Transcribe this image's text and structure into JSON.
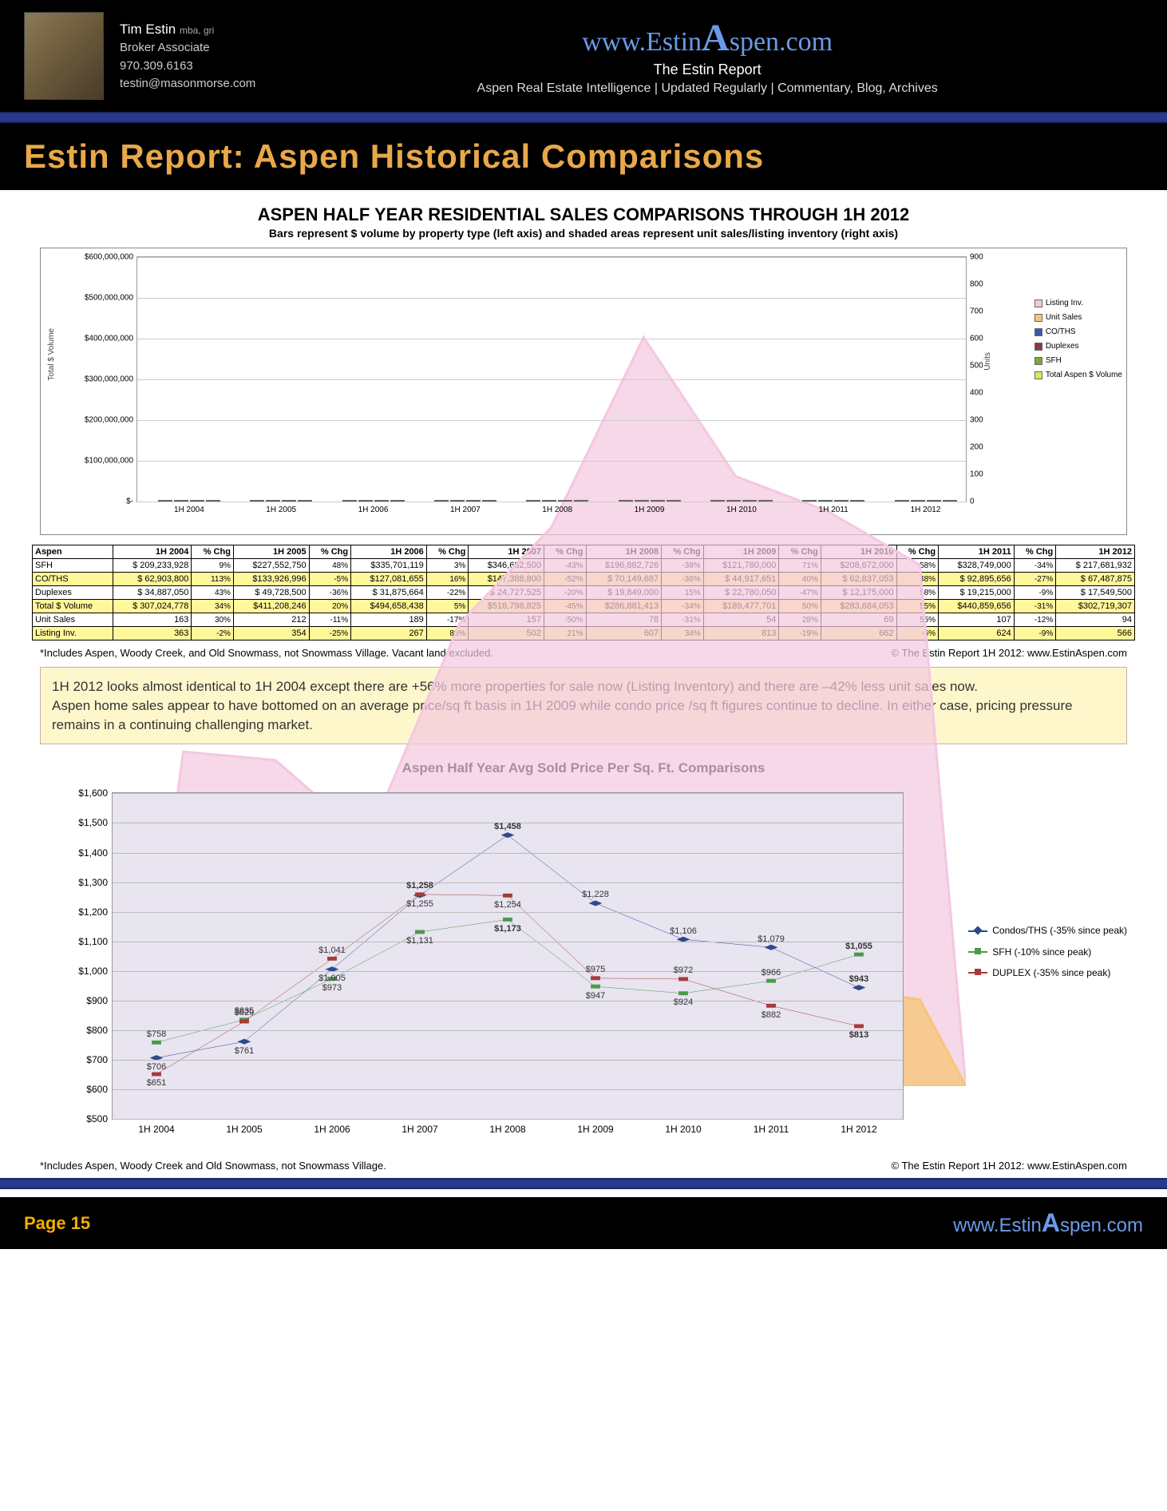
{
  "header": {
    "name": "Tim Estin",
    "cred": "mba, gri",
    "role": "Broker Associate",
    "phone": "970.309.6163",
    "email": "testin@masonmorse.com",
    "url_pre": "www.Estin",
    "url_mid": "A",
    "url_post": "spen.com",
    "sub": "The Estin Report",
    "tag": "Aspen Real Estate Intelligence  | Updated Regularly  | Commentary, Blog, Archives"
  },
  "title": "Estin Report: Aspen Historical Comparisons",
  "sub1": "ASPEN HALF YEAR RESIDENTIAL SALES COMPARISONS THROUGH 1H 2012",
  "sub2": "Bars represent $ volume by property type (left axis) and shaded areas represent unit sales/listing inventory (right axis)",
  "chart1": {
    "left_axis_label": "Total $ Volume",
    "right_axis_label": "Units",
    "ymax": 600000000,
    "ymax2": 900,
    "yticks": [
      "$-",
      "$100,000,000",
      "$200,000,000",
      "$300,000,000",
      "$400,000,000",
      "$500,000,000",
      "$600,000,000"
    ],
    "yticks2": [
      0,
      100,
      200,
      300,
      400,
      500,
      600,
      700,
      800,
      900
    ],
    "cats": [
      "1H 2004",
      "1H 2005",
      "1H 2006",
      "1H 2007",
      "1H 2008",
      "1H 2009",
      "1H 2010",
      "1H 2011",
      "1H 2012"
    ],
    "colors": {
      "listing": "#f4c8e0",
      "unitsales": "#f5c77a",
      "coths": "#3a5aa8",
      "duplex": "#8a3a3a",
      "sfh": "#7aa83a",
      "total": "#d8e858"
    },
    "series": {
      "coths": [
        62903800,
        133926996,
        127081655,
        147388800,
        70149687,
        44917651,
        62837053,
        92895656,
        67487875
      ],
      "duplex": [
        34887050,
        49728500,
        31875664,
        24727525,
        19849000,
        22780050,
        12175000,
        19215000,
        17549500
      ],
      "sfh": [
        209233928,
        227552750,
        335701119,
        346682500,
        196882726,
        121780000,
        208672000,
        328749000,
        217681932
      ],
      "total": [
        307024778,
        411208246,
        494658438,
        518798825,
        286881413,
        189477701,
        283684053,
        440859656,
        302719307
      ]
    },
    "areas": {
      "listing": [
        363,
        354,
        267,
        502,
        607,
        813,
        662,
        624,
        566
      ],
      "unitsales": [
        163,
        212,
        189,
        157,
        78,
        54,
        69,
        107,
        94
      ]
    },
    "legend": [
      "Listing Inv.",
      "Unit Sales",
      "CO/THS",
      "Duplexes",
      "SFH",
      "Total Aspen $ Volume"
    ]
  },
  "table": {
    "head": [
      "Aspen",
      "1H 2004",
      "% Chg",
      "1H 2005",
      "% Chg",
      "1H 2006",
      "% Chg",
      "1H 2007",
      "% Chg",
      "1H 2008",
      "% Chg",
      "1H 2009",
      "% Chg",
      "1H 2010",
      "% Chg",
      "1H 2011",
      "% Chg",
      "1H 2012"
    ],
    "rows": [
      {
        "hl": false,
        "c": [
          "SFH",
          "$ 209,233,928",
          "9%",
          "$227,552,750",
          "48%",
          "$335,701,119",
          "3%",
          "$346,682,500",
          "-43%",
          "$196,882,726",
          "-38%",
          "$121,780,000",
          "71%",
          "$208,672,000",
          "58%",
          "$328,749,000",
          "-34%",
          "$ 217,681,932"
        ]
      },
      {
        "hl": true,
        "c": [
          "CO/THS",
          "$  62,903,800",
          "113%",
          "$133,926,996",
          "-5%",
          "$127,081,655",
          "16%",
          "$147,388,800",
          "-52%",
          "$  70,149,687",
          "-36%",
          "$  44,917,651",
          "40%",
          "$  62,837,053",
          "48%",
          "$  92,895,656",
          "-27%",
          "$  67,487,875"
        ]
      },
      {
        "hl": false,
        "c": [
          "Duplexes",
          "$  34,887,050",
          "43%",
          "$  49,728,500",
          "-36%",
          "$  31,875,664",
          "-22%",
          "$  24,727,525",
          "-20%",
          "$  19,849,000",
          "15%",
          "$  22,780,050",
          "-47%",
          "$  12,175,000",
          "58%",
          "$  19,215,000",
          "-9%",
          "$  17,549,500"
        ]
      },
      {
        "hl": true,
        "c": [
          "Total $ Volume",
          "$ 307,024,778",
          "34%",
          "$411,208,246",
          "20%",
          "$494,658,438",
          "5%",
          "$518,798,825",
          "-45%",
          "$286,881,413",
          "-34%",
          "$189,477,701",
          "50%",
          "$283,684,053",
          "55%",
          "$440,859,656",
          "-31%",
          "$302,719,307"
        ]
      },
      {
        "hl": false,
        "c": [
          "Unit Sales",
          "163",
          "30%",
          "212",
          "-11%",
          "189",
          "-17%",
          "157",
          "-50%",
          "78",
          "-31%",
          "54",
          "28%",
          "69",
          "55%",
          "107",
          "-12%",
          "94"
        ]
      },
      {
        "hl": true,
        "c": [
          "Listing Inv.",
          "363",
          "-2%",
          "354",
          "-25%",
          "267",
          "88%",
          "502",
          "21%",
          "607",
          "34%",
          "813",
          "-19%",
          "662",
          "-6%",
          "624",
          "-9%",
          "566"
        ]
      }
    ]
  },
  "footnote1a": "*Includes Aspen, Woody Creek, and Old Snowmass, not Snowmass Village. Vacant land excluded.",
  "footnote1b": "© The Estin Report 1H 2012: www.EstinAspen.com",
  "callout": "1H 2012 looks almost identical to 1H 2004 except there are +56% more properties for sale now (Listing Inventory) and there are –42% less unit sales now.\nAspen home sales appear to have bottomed on an average price/sq ft basis in 1H 2009 while condo price /sq ft figures continue to decline. In either case,  pricing pressure remains in a continuing challenging market.",
  "chart2": {
    "title": "Aspen Half Year Avg Sold Price Per Sq. Ft. Comparisons",
    "ymin": 500,
    "ymax": 1600,
    "ystep": 100,
    "cats": [
      "1H 2004",
      "1H 2005",
      "1H 2006",
      "1H 2007",
      "1H 2008",
      "1H 2009",
      "1H 2010",
      "1H 2011",
      "1H 2012"
    ],
    "colors": {
      "condos": "#2a4a8a",
      "sfh": "#4a9a4a",
      "duplex": "#a83a3a"
    },
    "series": {
      "condos": {
        "label": "Condos/THS (-35% since peak)",
        "vals": [
          706,
          761,
          1005,
          1255,
          1458,
          1228,
          1106,
          1079,
          943
        ]
      },
      "sfh": {
        "label": "SFH (-10% since peak)",
        "vals": [
          758,
          835,
          973,
          1131,
          1173,
          947,
          924,
          966,
          1055
        ]
      },
      "duplex": {
        "label": "DUPLEX (-35% since peak)",
        "vals": [
          651,
          829,
          1041,
          1258,
          1254,
          975,
          972,
          882,
          813
        ]
      }
    },
    "datalabels": [
      {
        "s": "condos",
        "i": 0,
        "t": "$706",
        "p": "below"
      },
      {
        "s": "sfh",
        "i": 0,
        "t": "$758",
        "p": "above"
      },
      {
        "s": "duplex",
        "i": 0,
        "t": "$651",
        "p": "below"
      },
      {
        "s": "duplex",
        "i": 1,
        "t": "$829",
        "p": "above"
      },
      {
        "s": "sfh",
        "i": 1,
        "t": "$835",
        "p": "above"
      },
      {
        "s": "condos",
        "i": 1,
        "t": "$761",
        "p": "below"
      },
      {
        "s": "duplex",
        "i": 2,
        "t": "$1,041",
        "p": "above"
      },
      {
        "s": "condos",
        "i": 2,
        "t": "$1,005",
        "p": "below"
      },
      {
        "s": "sfh",
        "i": 2,
        "t": "$973",
        "p": "below"
      },
      {
        "s": "duplex",
        "i": 3,
        "t": "$1,258",
        "p": "above",
        "bold": true
      },
      {
        "s": "condos",
        "i": 3,
        "t": "$1,255",
        "p": "below"
      },
      {
        "s": "sfh",
        "i": 3,
        "t": "$1,131",
        "p": "below"
      },
      {
        "s": "condos",
        "i": 4,
        "t": "$1,458",
        "p": "above",
        "bold": true
      },
      {
        "s": "duplex",
        "i": 4,
        "t": "$1,254",
        "p": "below"
      },
      {
        "s": "sfh",
        "i": 4,
        "t": "$1,173",
        "p": "below",
        "bold": true
      },
      {
        "s": "condos",
        "i": 5,
        "t": "$1,228",
        "p": "above"
      },
      {
        "s": "duplex",
        "i": 5,
        "t": "$975",
        "p": "above"
      },
      {
        "s": "sfh",
        "i": 5,
        "t": "$947",
        "p": "below"
      },
      {
        "s": "condos",
        "i": 6,
        "t": "$1,106",
        "p": "above"
      },
      {
        "s": "duplex",
        "i": 6,
        "t": "$972",
        "p": "above"
      },
      {
        "s": "sfh",
        "i": 6,
        "t": "$924",
        "p": "below"
      },
      {
        "s": "condos",
        "i": 7,
        "t": "$1,079",
        "p": "above"
      },
      {
        "s": "sfh",
        "i": 7,
        "t": "$966",
        "p": "above"
      },
      {
        "s": "duplex",
        "i": 7,
        "t": "$882",
        "p": "below"
      },
      {
        "s": "sfh",
        "i": 8,
        "t": "$1,055",
        "p": "above",
        "bold": true
      },
      {
        "s": "condos",
        "i": 8,
        "t": "$943",
        "p": "above",
        "bold": true
      },
      {
        "s": "duplex",
        "i": 8,
        "t": "$813",
        "p": "below",
        "bold": true
      }
    ]
  },
  "footnote2a": "*Includes Aspen, Woody Creek and Old Snowmass, not Snowmass Village.",
  "footnote2b": "© The Estin Report 1H 2012: www.EstinAspen.com",
  "footer": {
    "page": "Page 15",
    "url_pre": "www.Estin",
    "url_mid": "A",
    "url_post": "spen.com"
  }
}
